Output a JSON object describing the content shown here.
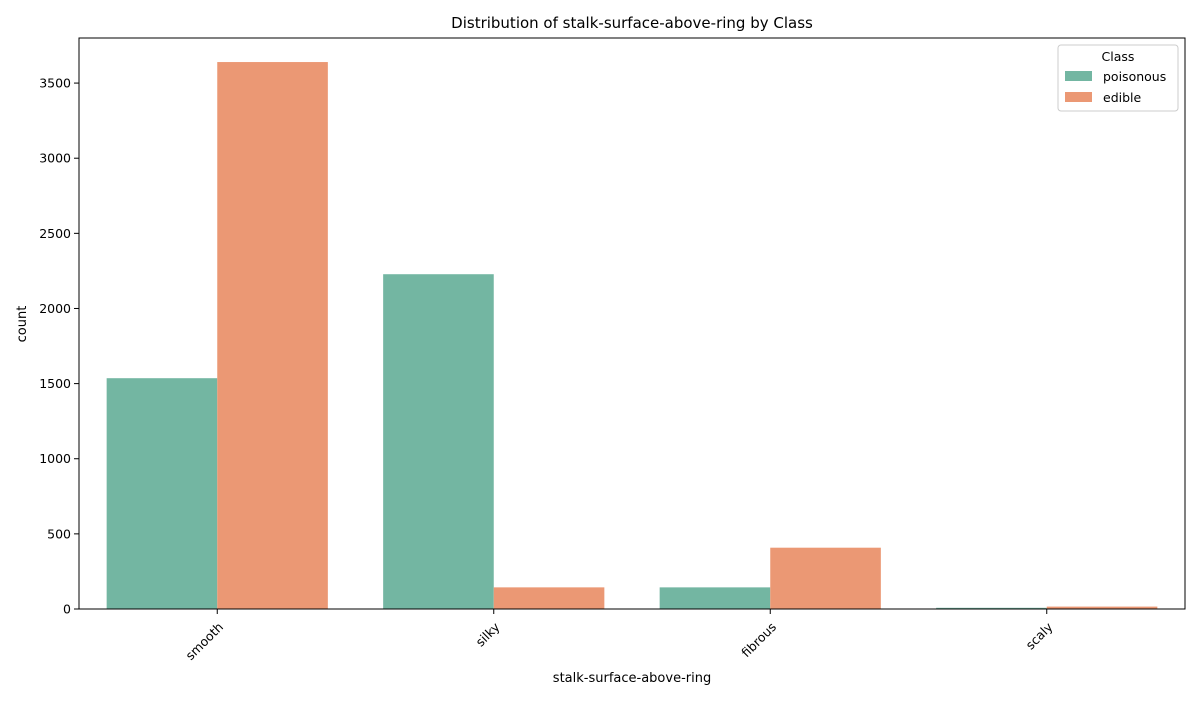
{
  "chart_data": {
    "type": "bar",
    "title": "Distribution of stalk-surface-above-ring by Class",
    "xlabel": "stalk-surface-above-ring",
    "ylabel": "count",
    "categories": [
      "smooth",
      "silky",
      "fibrous",
      "scaly"
    ],
    "series": [
      {
        "name": "poisonous",
        "color": "#73b6a2",
        "values": [
          1536,
          2228,
          144,
          8
        ]
      },
      {
        "name": "edible",
        "color": "#eb9874",
        "values": [
          3640,
          144,
          408,
          16
        ]
      }
    ],
    "ylim": [
      0,
      3800
    ],
    "yticks": [
      0,
      500,
      1000,
      1500,
      2000,
      2500,
      3000,
      3500
    ],
    "grid": false,
    "legend": {
      "title": "Class",
      "placement": "top-right"
    }
  }
}
